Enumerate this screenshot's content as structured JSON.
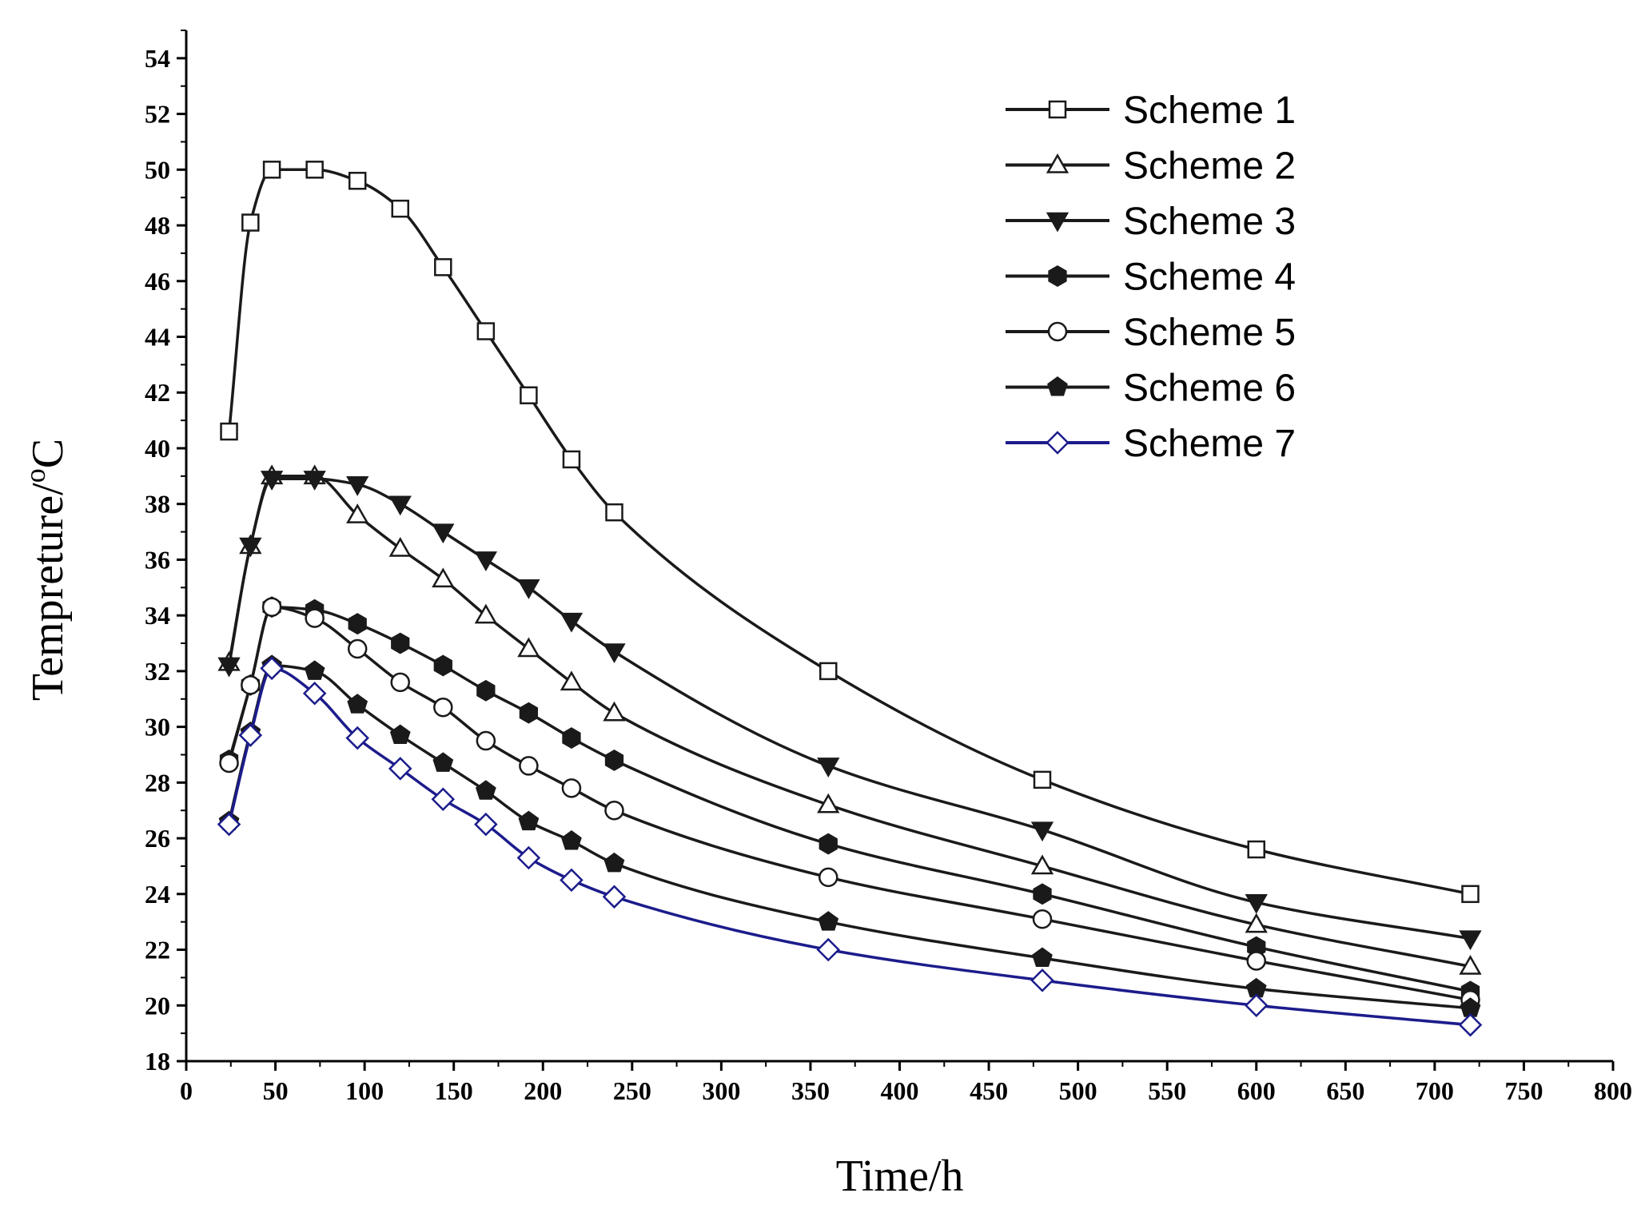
{
  "chart_data": {
    "type": "line",
    "title": "",
    "xlabel": "Time/h",
    "ylabel_main": "Tempreture/",
    "ylabel_sup": "o",
    "ylabel_unit": "C",
    "xlim": [
      0,
      800
    ],
    "ylim": [
      18,
      55
    ],
    "x_ticks": [
      0,
      50,
      100,
      150,
      200,
      250,
      300,
      350,
      400,
      450,
      500,
      550,
      600,
      650,
      700,
      750,
      800
    ],
    "y_ticks": [
      18,
      20,
      22,
      24,
      26,
      28,
      30,
      32,
      34,
      36,
      38,
      40,
      42,
      44,
      46,
      48,
      50,
      52,
      54
    ],
    "grid": false,
    "legend_position": "top-right",
    "x": [
      24,
      36,
      48,
      72,
      96,
      120,
      144,
      168,
      192,
      216,
      240,
      360,
      480,
      600,
      720
    ],
    "series": [
      {
        "name": "Scheme 1",
        "marker": "square-open",
        "color": "#1a1a1a",
        "values": [
          40.6,
          48.1,
          50.0,
          50.0,
          49.6,
          48.6,
          46.5,
          44.2,
          41.9,
          39.6,
          37.7,
          32.0,
          28.1,
          25.6,
          24.0
        ]
      },
      {
        "name": "Scheme 2",
        "marker": "triangle-up-open",
        "color": "#1a1a1a",
        "values": [
          32.3,
          36.5,
          39.0,
          39.0,
          37.6,
          36.4,
          35.3,
          34.0,
          32.8,
          31.6,
          30.5,
          27.2,
          25.0,
          22.9,
          21.4
        ]
      },
      {
        "name": "Scheme 3",
        "marker": "triangle-down-filled",
        "color": "#1a1a1a",
        "values": [
          32.2,
          36.5,
          38.9,
          38.9,
          38.7,
          38.0,
          37.0,
          36.0,
          35.0,
          33.8,
          32.7,
          28.6,
          26.3,
          23.7,
          22.4
        ]
      },
      {
        "name": "Scheme 4",
        "marker": "hexagon-filled",
        "color": "#1a1a1a",
        "values": [
          28.8,
          31.5,
          34.3,
          34.2,
          33.7,
          33.0,
          32.2,
          31.3,
          30.5,
          29.6,
          28.8,
          25.8,
          24.0,
          22.1,
          20.5
        ]
      },
      {
        "name": "Scheme 5",
        "marker": "circle-open",
        "color": "#1a1a1a",
        "values": [
          28.7,
          31.5,
          34.3,
          33.9,
          32.8,
          31.6,
          30.7,
          29.5,
          28.6,
          27.8,
          27.0,
          24.6,
          23.1,
          21.6,
          20.2
        ]
      },
      {
        "name": "Scheme 6",
        "marker": "pentagon-filled",
        "color": "#1a1a1a",
        "values": [
          26.6,
          29.8,
          32.2,
          32.0,
          30.8,
          29.7,
          28.7,
          27.7,
          26.6,
          25.9,
          25.1,
          23.0,
          21.7,
          20.6,
          19.9
        ]
      },
      {
        "name": "Scheme 7",
        "marker": "diamond-open",
        "color": "#1c1c8c",
        "values": [
          26.5,
          29.7,
          32.1,
          31.2,
          29.6,
          28.5,
          27.4,
          26.5,
          25.3,
          24.5,
          23.9,
          22.0,
          20.9,
          20.0,
          19.3
        ]
      }
    ]
  }
}
